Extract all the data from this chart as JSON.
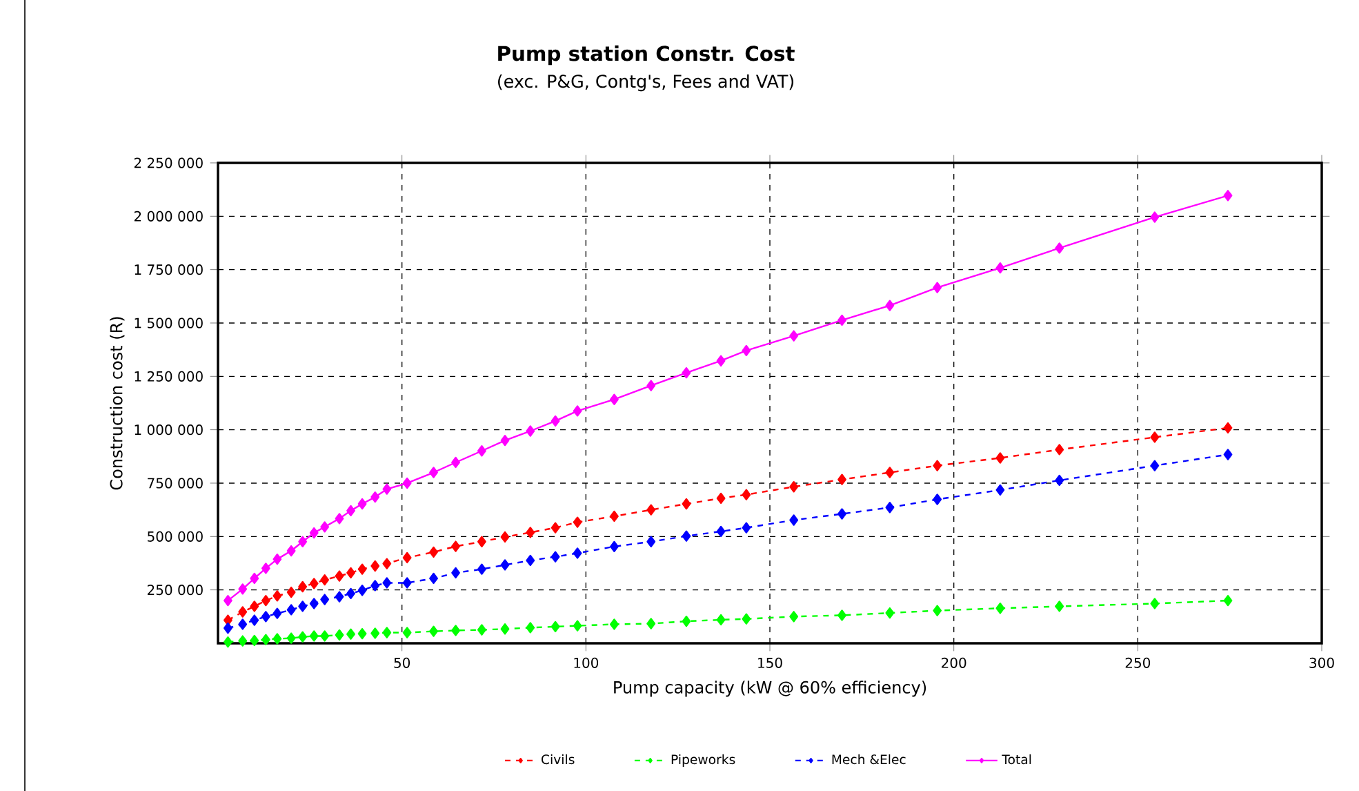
{
  "chart_data": {
    "type": "line",
    "title": "Pump station Constr.  Cost",
    "subtitle": "(exc. P&G, Contg's, Fees and VAT)",
    "xlabel": "Pump capacity (kW @ 60% efficiency)",
    "ylabel": "Construction cost (R)",
    "x": [
      2.7,
      6.7,
      9.9,
      13,
      16.1,
      19.9,
      23,
      26.1,
      29,
      33,
      36.1,
      39.2,
      42.7,
      45.9,
      51.4,
      58.6,
      64.6,
      71.7,
      78,
      84.9,
      91.7,
      97.7,
      107.7,
      117.7,
      127.3,
      136.7,
      143.6,
      156.5,
      169.6,
      182.6,
      195.5,
      212.6,
      228.7,
      254.6,
      274.5
    ],
    "series": [
      {
        "name": "Civils",
        "color": "#ff0000",
        "line_style": "dashed",
        "values": [
          108000,
          147000,
          173000,
          200000,
          222000,
          239000,
          265000,
          280000,
          297000,
          315000,
          330000,
          347000,
          362000,
          373000,
          401000,
          427000,
          454000,
          476000,
          498000,
          519000,
          541000,
          567000,
          595000,
          625000,
          653000,
          679000,
          696000,
          733000,
          767000,
          800000,
          832000,
          868000,
          907000,
          965000,
          1009000
        ]
      },
      {
        "name": "Pipeworks",
        "color": "#00ff00",
        "line_style": "dashed",
        "values": [
          6000,
          11000,
          13000,
          17000,
          21000,
          24000,
          30000,
          34000,
          34000,
          39000,
          43000,
          45000,
          47000,
          50000,
          50000,
          56000,
          60000,
          63000,
          67000,
          73000,
          78000,
          82000,
          89000,
          92000,
          103000,
          110000,
          114000,
          125000,
          131000,
          142000,
          153000,
          164000,
          173000,
          186000,
          200000
        ]
      },
      {
        "name": "Mech &Elec",
        "color": "#0000ff",
        "line_style": "dashed",
        "values": [
          71000,
          89000,
          108000,
          125000,
          140000,
          157000,
          173000,
          186000,
          205000,
          218000,
          233000,
          248000,
          270000,
          283000,
          283000,
          304000,
          330000,
          347000,
          367000,
          388000,
          405000,
          422000,
          453000,
          476000,
          502000,
          524000,
          541000,
          577000,
          606000,
          636000,
          674000,
          718000,
          763000,
          832000,
          884000
        ]
      },
      {
        "name": "Total",
        "color": "#ff00ff",
        "line_style": "solid",
        "values": [
          200000,
          254000,
          304000,
          351000,
          394000,
          433000,
          476000,
          517000,
          545000,
          584000,
          621000,
          653000,
          685000,
          722000,
          750000,
          800000,
          847000,
          901000,
          950000,
          994000,
          1041000,
          1088000,
          1142000,
          1207000,
          1267000,
          1323000,
          1371000,
          1440000,
          1513000,
          1582000,
          1666000,
          1758000,
          1851000,
          1996000,
          2097000
        ]
      }
    ],
    "xlim": [
      0,
      300
    ],
    "xticks": [
      50,
      100,
      150,
      200,
      250,
      300
    ],
    "ylim": [
      0,
      2250000
    ],
    "yticks": [
      {
        "value": 250000,
        "label": "250 000"
      },
      {
        "value": 500000,
        "label": "500 000"
      },
      {
        "value": 750000,
        "label": "750 000"
      },
      {
        "value": 1000000,
        "label": "1 000 000"
      },
      {
        "value": 1250000,
        "label": "1 250 000"
      },
      {
        "value": 1500000,
        "label": "1 500 000"
      },
      {
        "value": 1750000,
        "label": "1 750 000"
      },
      {
        "value": 2000000,
        "label": "2 000 000"
      },
      {
        "value": 2250000,
        "label": "2 250 000"
      }
    ],
    "grid": true,
    "legend": "bottom",
    "marker": "diamond"
  }
}
